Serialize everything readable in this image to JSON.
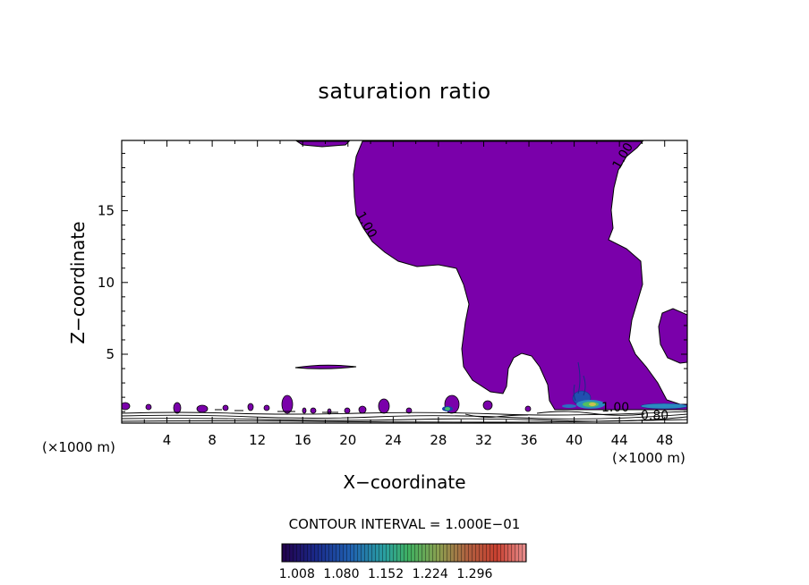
{
  "chart_data": {
    "type": "contour",
    "title": "saturation ratio",
    "xlabel": "X−coordinate",
    "ylabel": "Z−coordinate",
    "x_unit_left": "(×1000 m)",
    "x_unit_right": "(×1000 m)",
    "xlim": [
      0,
      50
    ],
    "ylim": [
      0.2,
      19.9
    ],
    "x_ticks": [
      "4",
      "8",
      "12",
      "16",
      "20",
      "24",
      "28",
      "32",
      "36",
      "40",
      "44",
      "48"
    ],
    "y_ticks": [
      "5",
      "10",
      "15"
    ],
    "contour_interval_label": "CONTOUR INTERVAL = 1.000E−01",
    "contour_labels": [
      "1.00",
      "1.00",
      "1.00",
      "0.80"
    ],
    "colorbar": {
      "tick_labels": [
        "1.008",
        "1.080",
        "1.152",
        "1.224",
        "1.296"
      ],
      "colors": [
        "#2a0050",
        "#202098",
        "#2070c0",
        "#30b080",
        "#60c060",
        "#a0a050",
        "#c06040",
        "#d04030",
        "#e08080"
      ]
    },
    "fill_color": "#7a00aa"
  }
}
